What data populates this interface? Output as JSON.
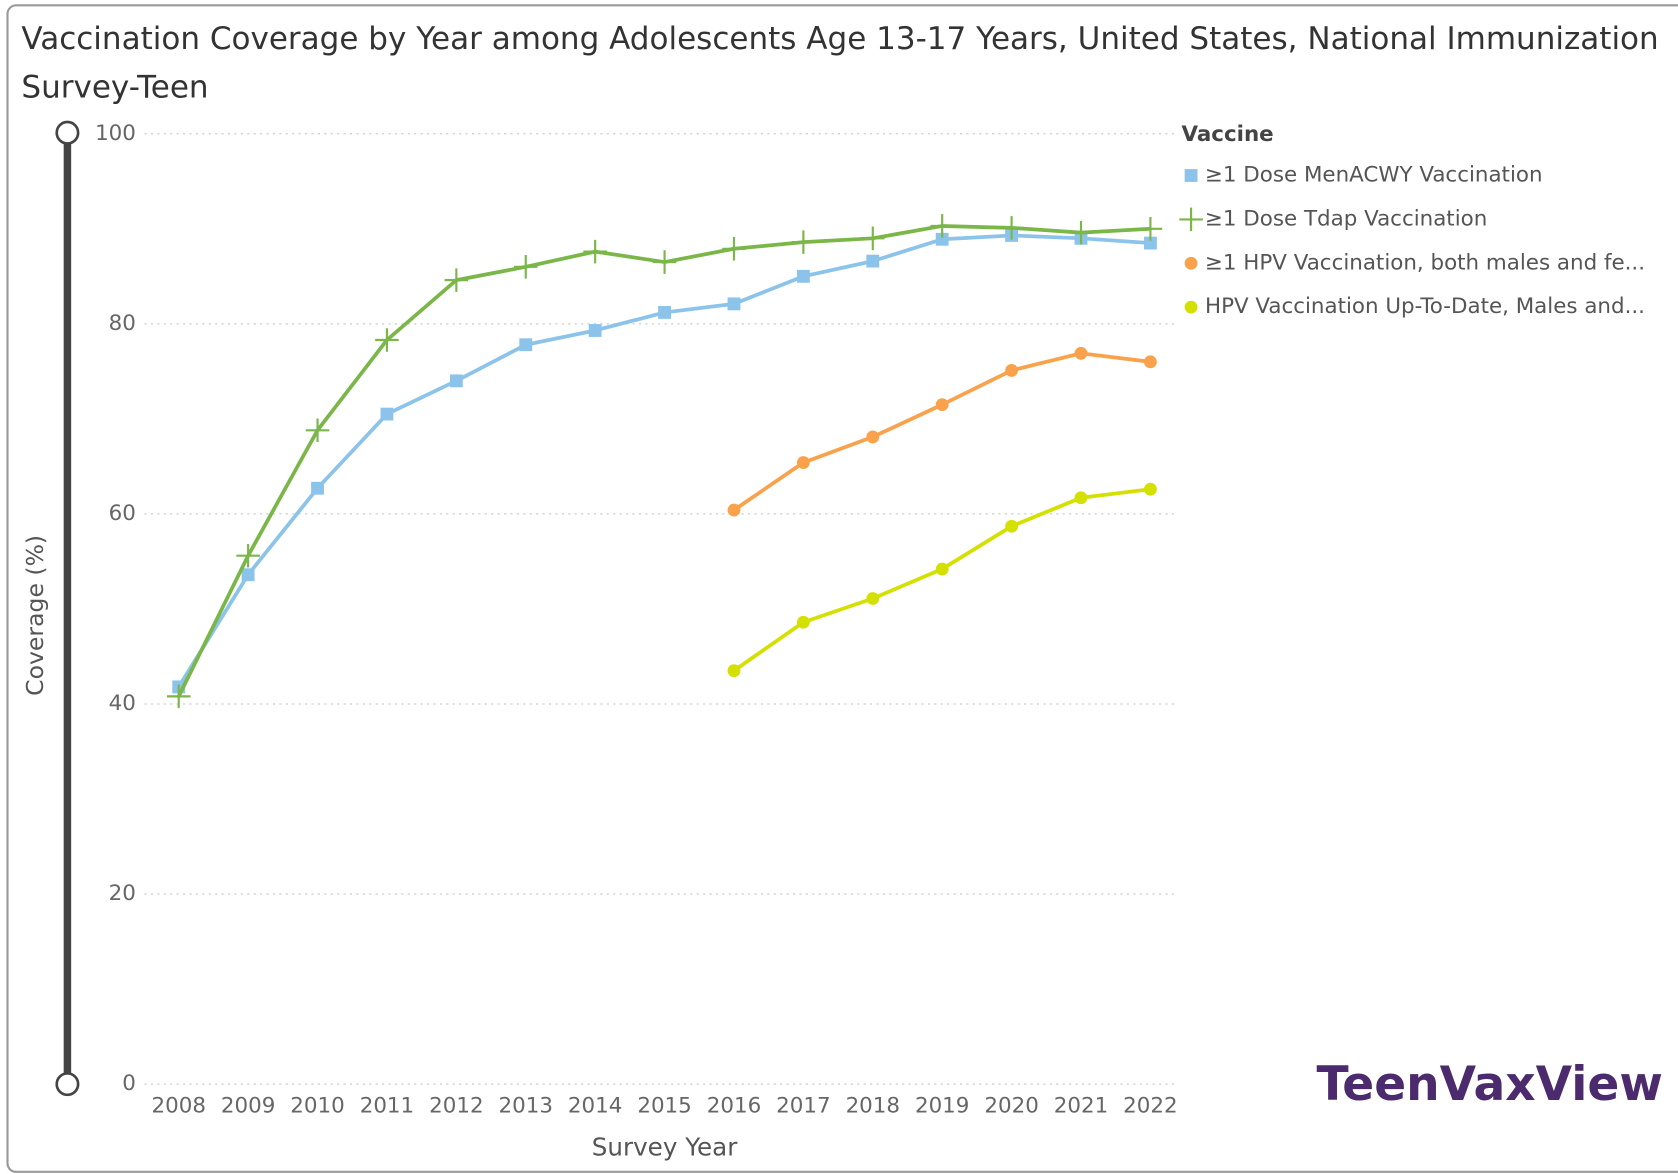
{
  "chart_data": {
    "type": "line",
    "title": "Vaccination Coverage by Year among Adolescents Age 13-17 Years, United States, National Immunization",
    "title_line2": "Survey-Teen",
    "x_label": "Survey Year",
    "y_label": "Coverage (%)",
    "legend_title": "Vaccine",
    "legend": "top-right",
    "grid": true,
    "logo": "TeenVaxView",
    "categories": [
      "2008",
      "2009",
      "2010",
      "2011",
      "2012",
      "2013",
      "2014",
      "2015",
      "2016",
      "2017",
      "2018",
      "2019",
      "2020",
      "2021",
      "2022"
    ],
    "ylim": [
      0,
      100
    ],
    "yticks": [
      0,
      20,
      40,
      60,
      80,
      100
    ],
    "series": [
      {
        "name": "≥1 Dose MenACWY Vaccination",
        "color": "#8cc3ea",
        "marker": "square",
        "values": [
          41.8,
          53.6,
          62.7,
          70.5,
          74.0,
          77.8,
          79.3,
          81.2,
          82.1,
          85.0,
          86.6,
          88.9,
          89.3,
          89.0,
          88.5
        ]
      },
      {
        "name": "≥1 Dose Tdap Vaccination",
        "color": "#7ab648",
        "marker": "plus",
        "values": [
          40.8,
          55.6,
          68.8,
          78.3,
          84.6,
          86.0,
          87.6,
          86.5,
          87.9,
          88.6,
          89.0,
          90.3,
          90.1,
          89.6,
          90.0
        ]
      },
      {
        "name": "≥1 HPV Vaccination, both males and fe...",
        "color": "#f9a24b",
        "marker": "circle",
        "values": [
          null,
          null,
          null,
          null,
          null,
          null,
          null,
          null,
          60.4,
          65.4,
          68.1,
          71.5,
          75.1,
          76.9,
          76.0
        ]
      },
      {
        "name": "HPV Vaccination Up-To-Date, Males and...",
        "color": "#d4e000",
        "marker": "circle",
        "values": [
          null,
          null,
          null,
          null,
          null,
          null,
          null,
          null,
          43.5,
          48.6,
          51.1,
          54.2,
          58.7,
          61.7,
          62.6
        ]
      }
    ]
  }
}
